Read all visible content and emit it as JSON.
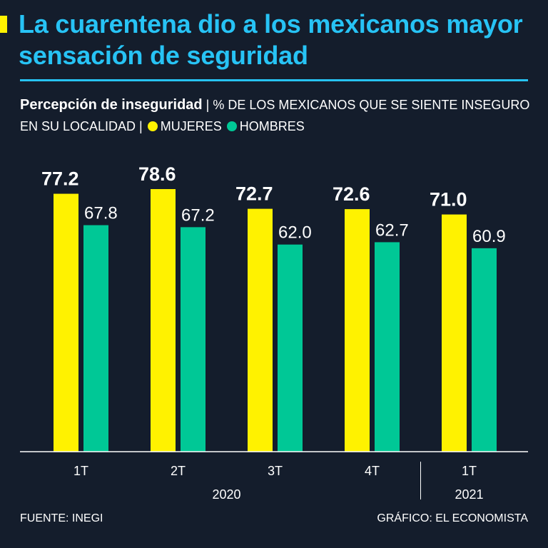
{
  "title": "La cuarentena dio a los mexicanos mayor sensación de seguridad",
  "subtitle": {
    "bold": "Percepción de inseguridad",
    "sep1": " | ",
    "desc": "% DE LOS MEXICANOS QUE SE SIENTE INSEGURO EN SU LOCALIDAD",
    "sep2": " | "
  },
  "colors": {
    "mujeres": "#fff200",
    "hombres": "#00c896",
    "title": "#27c3f5",
    "background": "#141d2c"
  },
  "chart_data": {
    "type": "bar",
    "categories": [
      "1T",
      "2T",
      "3T",
      "4T",
      "1T"
    ],
    "years": [
      {
        "label": "2020",
        "categories": [
          0,
          1,
          2,
          3
        ]
      },
      {
        "label": "2021",
        "categories": [
          4
        ]
      }
    ],
    "series": [
      {
        "name": "MUJERES",
        "values": [
          77.2,
          78.6,
          72.7,
          72.6,
          71.0
        ],
        "labels": [
          "77.2",
          "78.6",
          "72.7",
          "72.6",
          "71.0"
        ]
      },
      {
        "name": "HOMBRES",
        "values": [
          67.8,
          67.2,
          62.0,
          62.7,
          60.9
        ],
        "labels": [
          "67.8",
          "67.2",
          "62.0",
          "62.7",
          "60.9"
        ]
      }
    ],
    "ylim": [
      0,
      80
    ],
    "grid": false,
    "legend": "top-left"
  },
  "footer": {
    "source": "FUENTE: INEGI",
    "credit": "GRÁFICO: EL ECONOMISTA"
  }
}
